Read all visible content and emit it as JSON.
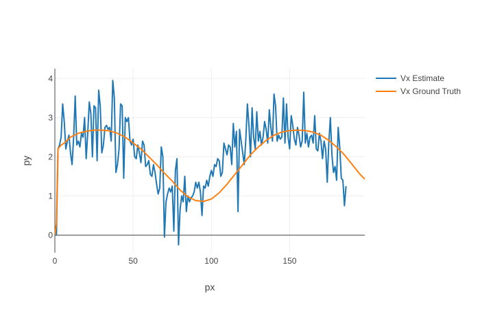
{
  "chart_data": {
    "type": "line",
    "title": "",
    "xlabel": "px",
    "ylabel": "py",
    "xlim": [
      0,
      198
    ],
    "ylim": [
      -0.45,
      4.25
    ],
    "x_ticks": [
      0,
      50,
      100,
      150
    ],
    "y_ticks": [
      0,
      1,
      2,
      3,
      4
    ],
    "x_tick_labels": [
      "0",
      "50",
      "100",
      "150"
    ],
    "y_tick_labels": [
      "0",
      "1",
      "2",
      "3",
      "4"
    ],
    "grid": true,
    "legend_position": "top-right",
    "legend": [
      "Vx Estimate",
      "Vx Ground Truth"
    ],
    "series": [
      {
        "name": "Vx Estimate",
        "color": "#1f77b4",
        "x_start": 0,
        "x_step": 1,
        "values": [
          0,
          0,
          2.2,
          2.3,
          2.5,
          3.35,
          2.9,
          2.2,
          2.4,
          2.55,
          2.1,
          1.8,
          2.5,
          3.55,
          2.3,
          2.4,
          2.25,
          2.6,
          2.5,
          3.0,
          1.95,
          2.6,
          3.4,
          3.1,
          2.0,
          3.3,
          3.25,
          1.9,
          3.7,
          3.3,
          2.1,
          2.3,
          2.75,
          2.8,
          2.7,
          2.75,
          2.4,
          3.95,
          3.5,
          1.6,
          1.8,
          2.2,
          3.35,
          3.3,
          1.45,
          3.0,
          2.9,
          3.0,
          2.4,
          2.3,
          2.45,
          2.0,
          1.95,
          2.3,
          2.1,
          1.85,
          2.4,
          2.3,
          1.75,
          1.8,
          1.9,
          1.55,
          1.5,
          1.8,
          1.6,
          1.3,
          1.05,
          1.2,
          2.25,
          2.0,
          -0.05,
          0.85,
          1.05,
          1.2,
          1.1,
          1.25,
          0.1,
          1.65,
          1.95,
          -0.25,
          0.65,
          1.0,
          0.85,
          1.5,
          0.6,
          1.0,
          0.85,
          0.95,
          1.0,
          1.1,
          1.35,
          1.2,
          1.35,
          1.1,
          0.5,
          1.25,
          1.2,
          1.4,
          1.25,
          1.5,
          1.65,
          1.5,
          1.8,
          1.75,
          1.95,
          1.9,
          1.5,
          1.6,
          2.35,
          2.2,
          2.05,
          2.3,
          2.25,
          1.8,
          2.85,
          2.25,
          2.65,
          0.6,
          2.7,
          2.4,
          2.1,
          1.8,
          2.45,
          3.35,
          2.8,
          2.0,
          3.25,
          2.5,
          2.2,
          3.15,
          2.4,
          2.65,
          2.3,
          2.5,
          2.9,
          2.7,
          2.35,
          3.2,
          2.75,
          2.4,
          3.6,
          3.3,
          2.4,
          2.55,
          2.45,
          2.5,
          3.5,
          2.35,
          3.35,
          2.5,
          2.2,
          3.05,
          2.8,
          2.45,
          2.3,
          2.75,
          2.55,
          2.25,
          2.4,
          3.65,
          2.35,
          2.6,
          2.25,
          2.5,
          2.55,
          2.35,
          3.05,
          2.2,
          2.15,
          2.6,
          2.4,
          1.95,
          2.4,
          2.2,
          1.35,
          2.35,
          3.0,
          2.05,
          1.6,
          1.75,
          1.4,
          2.75,
          2.25,
          1.45,
          1.4,
          0.75,
          1.25
        ]
      },
      {
        "name": "Vx Ground Truth",
        "color": "#ff7f0e",
        "x": [
          0,
          1,
          2,
          4,
          6,
          10,
          15,
          20,
          25,
          30,
          35,
          40,
          45,
          50,
          55,
          60,
          65,
          70,
          75,
          80,
          85,
          90,
          95,
          100,
          105,
          110,
          115,
          120,
          125,
          130,
          135,
          140,
          145,
          150,
          155,
          160,
          165,
          170,
          175,
          180,
          185,
          190,
          195,
          198
        ],
        "y": [
          0,
          0.3,
          2.2,
          2.3,
          2.35,
          2.5,
          2.6,
          2.65,
          2.68,
          2.68,
          2.66,
          2.6,
          2.5,
          2.35,
          2.2,
          2.0,
          1.8,
          1.58,
          1.38,
          1.15,
          0.98,
          0.88,
          0.86,
          0.92,
          1.08,
          1.3,
          1.55,
          1.8,
          2.05,
          2.25,
          2.42,
          2.55,
          2.63,
          2.67,
          2.68,
          2.67,
          2.63,
          2.55,
          2.42,
          2.25,
          2.05,
          1.8,
          1.55,
          1.43
        ]
      }
    ]
  }
}
